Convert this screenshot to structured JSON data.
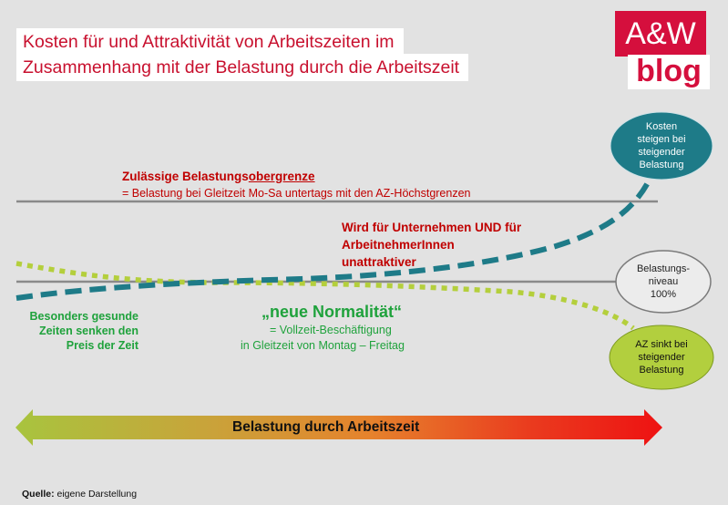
{
  "title": {
    "line1": "Kosten für und Attraktivität von Arbeitszeiten im",
    "line2": "Zusammenhang mit der Belastung durch die Arbeitszeit"
  },
  "logo": {
    "top": "A&W",
    "bottom": "blog"
  },
  "upper_limit": {
    "heading_prefix": "Zulässige Belastungs",
    "heading_underlined": "obergrenze",
    "description": "= Belastung bei Gleitzeit Mo-Sa untertags mit den AZ-Höchstgrenzen"
  },
  "unattractive": {
    "line1": "Wird für Unternehmen UND für",
    "line2": "ArbeitnehmerInnen",
    "line3": "unattraktiver"
  },
  "healthy_times": {
    "line1": "Besonders gesunde",
    "line2": "Zeiten senken den",
    "line3": "Preis der Zeit"
  },
  "new_normal": {
    "heading": "„neue Normalität“",
    "line1": "= Vollzeit-Beschäftigung",
    "line2": "in Gleitzeit von Montag – Freitag"
  },
  "bubbles": {
    "costs": {
      "line1": "Kosten",
      "line2": "steigen bei",
      "line3": "steigender",
      "line4": "Belastung"
    },
    "level": {
      "line1": "Belastungs-",
      "line2": "niveau",
      "line3": "100%"
    },
    "az": {
      "line1": "AZ sinkt bei",
      "line2": "steigender",
      "line3": "Belastung"
    }
  },
  "axis_label": "Belastung durch Arbeitszeit",
  "source": {
    "label": "Quelle:",
    "text": " eigene Darstellung"
  },
  "colors": {
    "red": "#c00000",
    "green": "#1fa23c",
    "teal": "#1e7b88",
    "olive": "#b2cf3e",
    "brand": "#d50f3d"
  }
}
